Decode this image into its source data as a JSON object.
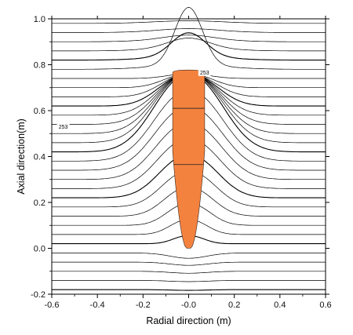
{
  "chart_data": {
    "type": "line",
    "title": "",
    "xlabel": "Radial direction (m)",
    "ylabel": "Axial direction(m)",
    "xlim": [
      -0.6,
      0.6
    ],
    "ylim": [
      -0.2,
      1.0
    ],
    "x_ticks": [
      -0.6,
      -0.4,
      -0.2,
      0.0,
      0.2,
      0.4,
      0.6
    ],
    "x_tick_labels": [
      "-0.6",
      "-0.4",
      "-0.2",
      "-0.0",
      "0.2",
      "0.4",
      "0.6"
    ],
    "y_ticks": [
      -0.2,
      0.0,
      0.2,
      0.4,
      0.6,
      0.8,
      1.0
    ],
    "y_tick_labels": [
      "-0.2",
      "0.0",
      "0.2",
      "0.4",
      "0.6",
      "0.8",
      "1.0"
    ],
    "grid": false,
    "legend": "none",
    "contour_levels_y_far_field": [
      -0.18,
      -0.14,
      -0.1,
      -0.06,
      -0.02,
      0.02,
      0.06,
      0.1,
      0.14,
      0.18,
      0.22,
      0.26,
      0.3,
      0.34,
      0.38,
      0.42,
      0.46,
      0.5,
      0.54,
      0.58,
      0.62,
      0.66,
      0.7,
      0.74,
      0.78,
      0.82,
      0.86,
      0.9,
      0.94,
      0.98
    ],
    "contour_labels": [
      {
        "text": "253",
        "x": -0.55,
        "y": 0.53
      },
      {
        "text": "253",
        "x": 0.07,
        "y": 0.765
      }
    ],
    "body": {
      "color": "#f4823f",
      "x_half_width": 0.07,
      "y_bottom": 0.0,
      "y_top": 0.765,
      "internal_lines_y": [
        0.61,
        0.365
      ]
    },
    "line_color": "#000000"
  }
}
